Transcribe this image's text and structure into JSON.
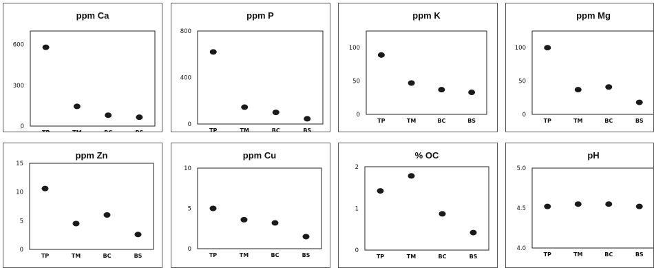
{
  "chart_data": [
    {
      "type": "scatter",
      "title": "ppm Ca",
      "categories": [
        "TP",
        "TM",
        "BC",
        "BS"
      ],
      "values": [
        580,
        145,
        80,
        65
      ],
      "yticks": [
        "0",
        "300",
        "600"
      ],
      "ylim": [
        0,
        700
      ]
    },
    {
      "type": "scatter",
      "title": "ppm P",
      "categories": [
        "TP",
        "TM",
        "BC",
        "BS"
      ],
      "values": [
        620,
        145,
        100,
        45
      ],
      "yticks": [
        "0",
        "400",
        "800"
      ],
      "ylim": [
        0,
        800
      ]
    },
    {
      "type": "scatter",
      "title": "ppm K",
      "categories": [
        "TP",
        "TM",
        "BC",
        "BS"
      ],
      "values": [
        89,
        47,
        37,
        33
      ],
      "yticks": [
        "0",
        "50",
        "100"
      ],
      "ylim": [
        0,
        125
      ]
    },
    {
      "type": "scatter",
      "title": "ppm Mg",
      "categories": [
        "TP",
        "TM",
        "BC",
        "BS"
      ],
      "values": [
        100,
        37,
        41,
        18
      ],
      "yticks": [
        "0",
        "50",
        "100"
      ],
      "ylim": [
        0,
        125
      ]
    },
    {
      "type": "scatter",
      "title": "ppm Zn",
      "categories": [
        "TP",
        "TM",
        "BC",
        "BS"
      ],
      "values": [
        10.6,
        4.5,
        6.0,
        2.6
      ],
      "yticks": [
        "0",
        "5",
        "10",
        "15"
      ],
      "ylim": [
        0,
        15
      ]
    },
    {
      "type": "scatter",
      "title": "ppm Cu",
      "categories": [
        "TP",
        "TM",
        "BC",
        "BS"
      ],
      "values": [
        5.0,
        3.6,
        3.2,
        1.5
      ],
      "yticks": [
        "0",
        "5",
        "10"
      ],
      "ylim": [
        0,
        10
      ]
    },
    {
      "type": "scatter",
      "title": "% OC",
      "categories": [
        "TP",
        "TM",
        "BC",
        "BS"
      ],
      "values": [
        1.42,
        1.78,
        0.87,
        0.42
      ],
      "yticks": [
        "0",
        "1",
        "2"
      ],
      "ylim": [
        0,
        2
      ]
    },
    {
      "type": "scatter",
      "title": "pH",
      "categories": [
        "TP",
        "TM",
        "BC",
        "BS"
      ],
      "values": [
        4.52,
        4.55,
        4.55,
        4.52
      ],
      "yticks": [
        "4.0",
        "4.5",
        "5.0"
      ],
      "ylim": [
        4.0,
        5.0
      ]
    }
  ]
}
